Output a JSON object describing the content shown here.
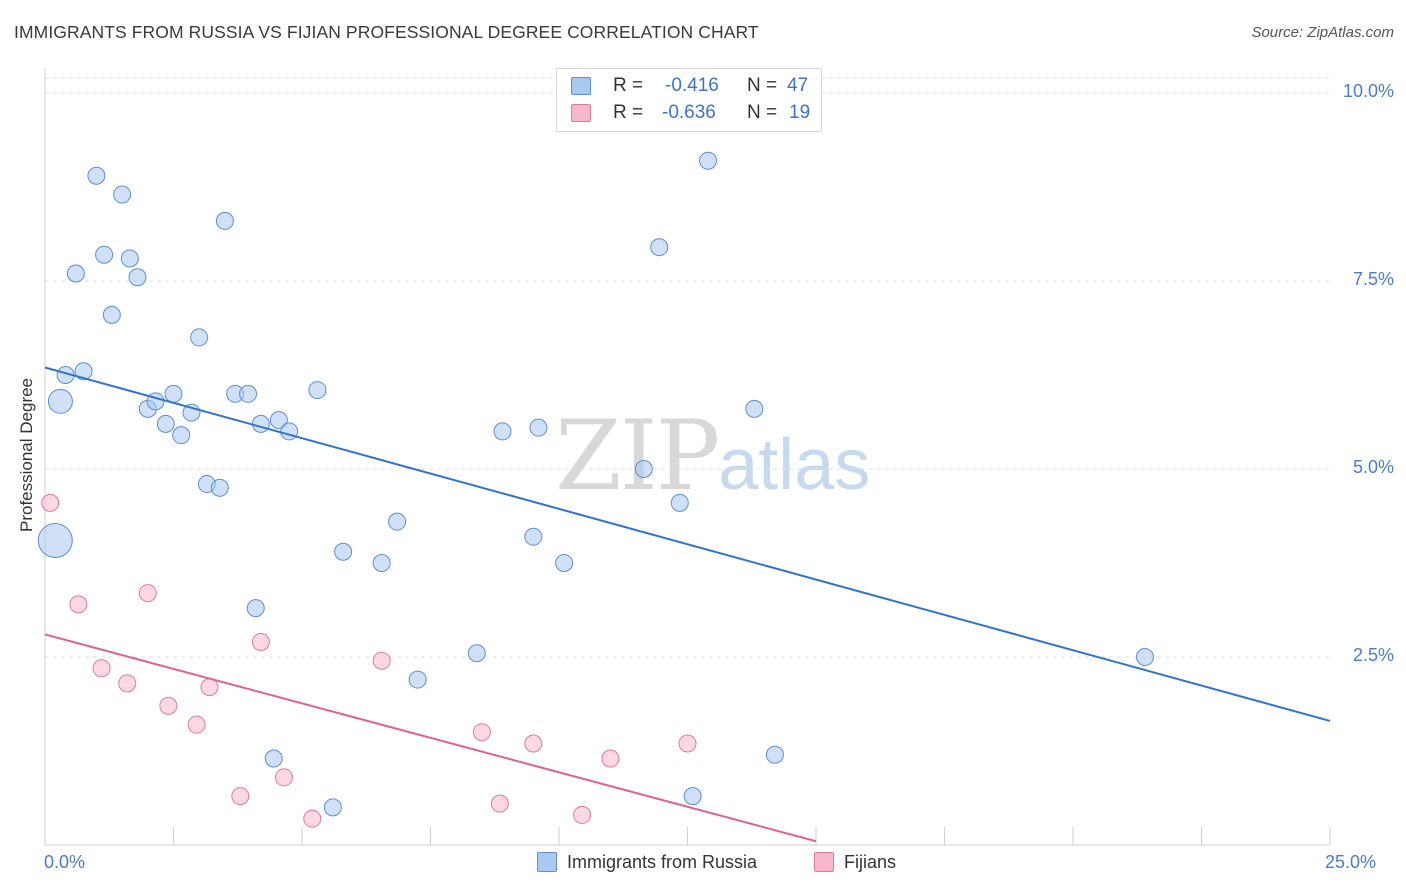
{
  "title": "IMMIGRANTS FROM RUSSIA VS FIJIAN PROFESSIONAL DEGREE CORRELATION CHART",
  "source": "Source: ZipAtlas.com",
  "watermark": {
    "zip": "ZIP",
    "atlas": "atlas"
  },
  "legend": {
    "rows": [
      {
        "r_label": "R = ",
        "r_value": "-0.416",
        "n_label": "N = ",
        "n_value": "47",
        "color": "#aac9f0"
      },
      {
        "r_label": "R = ",
        "r_value": "-0.636",
        "n_label": "N = ",
        "n_value": "19",
        "color": "#f7b8cb"
      }
    ]
  },
  "chart_data": {
    "type": "scatter",
    "title": "IMMIGRANTS FROM RUSSIA VS FIJIAN PROFESSIONAL DEGREE CORRELATION CHART",
    "xlabel": "",
    "ylabel": "Professional Degree",
    "xlim": [
      0,
      25
    ],
    "ylim": [
      0,
      10.2
    ],
    "x_tick_labels": [
      "0.0%",
      "25.0%"
    ],
    "y_ticks": [
      2.5,
      5.0,
      7.5,
      10.0
    ],
    "y_tick_labels": [
      "2.5%",
      "5.0%",
      "7.5%",
      "10.0%"
    ],
    "grid": true,
    "series": [
      {
        "name": "Immigrants from Russia",
        "color": "#aac9f0",
        "stroke": "#5b8fd6",
        "line_color": "#2f74d0",
        "trend": {
          "x0": 0.0,
          "y0": 6.35,
          "x1": 25.0,
          "y1": 1.65
        },
        "points": [
          {
            "x": 0.2,
            "y": 4.05,
            "big": 2
          },
          {
            "x": 0.3,
            "y": 5.9,
            "big": 1
          },
          {
            "x": 0.4,
            "y": 6.25
          },
          {
            "x": 0.6,
            "y": 7.6
          },
          {
            "x": 0.75,
            "y": 6.3
          },
          {
            "x": 1.0,
            "y": 8.9
          },
          {
            "x": 1.15,
            "y": 7.85
          },
          {
            "x": 1.3,
            "y": 7.05
          },
          {
            "x": 1.5,
            "y": 8.65
          },
          {
            "x": 1.65,
            "y": 7.8
          },
          {
            "x": 1.8,
            "y": 7.55
          },
          {
            "x": 2.0,
            "y": 5.8
          },
          {
            "x": 2.15,
            "y": 5.9
          },
          {
            "x": 2.35,
            "y": 5.6
          },
          {
            "x": 2.5,
            "y": 6.0
          },
          {
            "x": 2.65,
            "y": 5.45
          },
          {
            "x": 2.85,
            "y": 5.75
          },
          {
            "x": 3.0,
            "y": 6.75
          },
          {
            "x": 3.15,
            "y": 4.8
          },
          {
            "x": 3.4,
            "y": 4.75
          },
          {
            "x": 3.5,
            "y": 8.3
          },
          {
            "x": 3.7,
            "y": 6.0
          },
          {
            "x": 3.95,
            "y": 6.0
          },
          {
            "x": 4.1,
            "y": 3.15
          },
          {
            "x": 4.2,
            "y": 5.6
          },
          {
            "x": 4.55,
            "y": 5.65
          },
          {
            "x": 4.75,
            "y": 5.5
          },
          {
            "x": 4.45,
            "y": 1.15
          },
          {
            "x": 5.3,
            "y": 6.05
          },
          {
            "x": 5.6,
            "y": 0.5
          },
          {
            "x": 5.8,
            "y": 3.9
          },
          {
            "x": 6.55,
            "y": 3.75
          },
          {
            "x": 6.85,
            "y": 4.3
          },
          {
            "x": 7.25,
            "y": 2.2
          },
          {
            "x": 8.4,
            "y": 2.55
          },
          {
            "x": 8.9,
            "y": 5.5
          },
          {
            "x": 9.5,
            "y": 4.1
          },
          {
            "x": 9.6,
            "y": 5.55
          },
          {
            "x": 10.1,
            "y": 3.75
          },
          {
            "x": 11.65,
            "y": 5.0
          },
          {
            "x": 11.95,
            "y": 7.95
          },
          {
            "x": 12.35,
            "y": 4.55
          },
          {
            "x": 12.6,
            "y": 0.65
          },
          {
            "x": 12.9,
            "y": 9.1
          },
          {
            "x": 13.8,
            "y": 5.8
          },
          {
            "x": 14.2,
            "y": 1.2
          },
          {
            "x": 21.4,
            "y": 2.5
          }
        ]
      },
      {
        "name": "Fijians",
        "color": "#f7b8cb",
        "stroke": "#e07a9c",
        "line_color": "#e0608f",
        "trend": {
          "x0": 0.0,
          "y0": 2.8,
          "x1": 15.0,
          "y1": 0.05
        },
        "points": [
          {
            "x": 0.1,
            "y": 4.55
          },
          {
            "x": 0.65,
            "y": 3.2
          },
          {
            "x": 1.1,
            "y": 2.35
          },
          {
            "x": 1.6,
            "y": 2.15
          },
          {
            "x": 2.0,
            "y": 3.35
          },
          {
            "x": 2.4,
            "y": 1.85
          },
          {
            "x": 2.95,
            "y": 1.6
          },
          {
            "x": 3.2,
            "y": 2.1
          },
          {
            "x": 3.8,
            "y": 0.65
          },
          {
            "x": 4.2,
            "y": 2.7
          },
          {
            "x": 4.65,
            "y": 0.9
          },
          {
            "x": 5.2,
            "y": 0.35
          },
          {
            "x": 6.55,
            "y": 2.45
          },
          {
            "x": 8.5,
            "y": 1.5
          },
          {
            "x": 8.85,
            "y": 0.55
          },
          {
            "x": 9.5,
            "y": 1.35
          },
          {
            "x": 10.45,
            "y": 0.4
          },
          {
            "x": 11.0,
            "y": 1.15
          },
          {
            "x": 12.5,
            "y": 1.35
          }
        ]
      }
    ]
  }
}
